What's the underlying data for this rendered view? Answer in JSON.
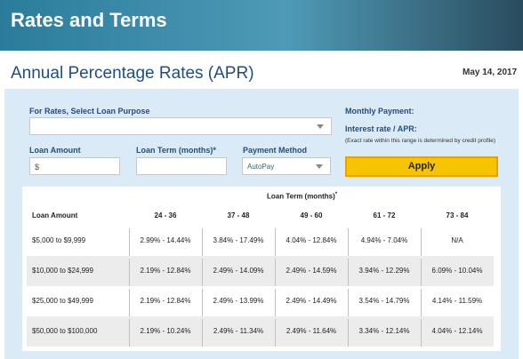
{
  "header": {
    "title": "Rates and Terms"
  },
  "page": {
    "title": "Annual Percentage Rates (APR)",
    "date": "May 14, 2017"
  },
  "form": {
    "loan_purpose_label": "For Rates, Select Loan Purpose",
    "loan_amount_label": "Loan Amount",
    "loan_amount_placeholder": "$",
    "loan_term_label": "Loan Term (months)*",
    "payment_method_label": "Payment Method",
    "payment_method_value": "AutoPay",
    "monthly_payment_label": "Monthly Payment:",
    "interest_rate_label": "Interest rate / APR:",
    "rate_note": "(Exact rate within this range is determined by credit profile)",
    "apply_button": "Apply"
  },
  "table": {
    "group_header": "Loan Term (months)",
    "group_header_mark": "*",
    "columns": [
      "Loan Amount",
      "24 - 36",
      "37 - 48",
      "49 - 60",
      "61 - 72",
      "73 - 84"
    ],
    "rows": [
      [
        "$5,000 to $9,999",
        "2.99% - 14.44%",
        "3.84% - 17.49%",
        "4.04% - 12.84%",
        "4.94% - 7.04%",
        "N/A"
      ],
      [
        "$10,000 to $24,999",
        "2.19% - 12.84%",
        "2.49% - 14.09%",
        "2.49% - 14.59%",
        "3.94% - 12.29%",
        "6.09% - 10.04%"
      ],
      [
        "$25,000 to $49,999",
        "2.19% - 12.84%",
        "2.49% - 13.99%",
        "2.49% - 14.49%",
        "3.54% - 14.79%",
        "4.14% - 11.59%"
      ],
      [
        "$50,000 to $100,000",
        "2.19% - 10.24%",
        "2.49% - 11.34%",
        "2.49% - 11.64%",
        "3.34% - 12.14%",
        "4.04% - 12.14%"
      ]
    ]
  }
}
